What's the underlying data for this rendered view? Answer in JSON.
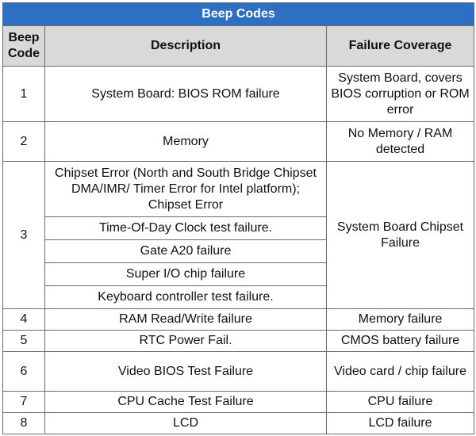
{
  "title": "Beep Codes",
  "headers": {
    "code_line1": "Beep",
    "code_line2": "Code",
    "description": "Description",
    "coverage": "Failure Coverage"
  },
  "rows": [
    {
      "code": "1",
      "description": [
        "System Board: BIOS ROM failure"
      ],
      "coverage": "System Board, covers BIOS corruption or ROM error"
    },
    {
      "code": "2",
      "description": [
        "Memory"
      ],
      "coverage": "No Memory / RAM detected"
    },
    {
      "code": "3",
      "description": [
        "Chipset Error (North and South Bridge Chipset DMA/IMR/ Timer Error for Intel platform); Chipset Error",
        "Time-Of-Day Clock test failure.",
        "Gate A20 failure",
        "Super I/O chip failure",
        "Keyboard controller test failure."
      ],
      "coverage": "System Board Chipset Failure"
    },
    {
      "code": "4",
      "description": [
        "RAM Read/Write failure"
      ],
      "coverage": "Memory failure"
    },
    {
      "code": "5",
      "description": [
        "RTC Power Fail."
      ],
      "coverage": "CMOS battery failure"
    },
    {
      "code": "6",
      "description": [
        "Video BIOS Test Failure"
      ],
      "coverage": "Video card / chip failure"
    },
    {
      "code": "7",
      "description": [
        "CPU Cache Test Failure"
      ],
      "coverage": "CPU failure"
    },
    {
      "code": "8",
      "description": [
        "LCD"
      ],
      "coverage": "LCD failure"
    }
  ]
}
